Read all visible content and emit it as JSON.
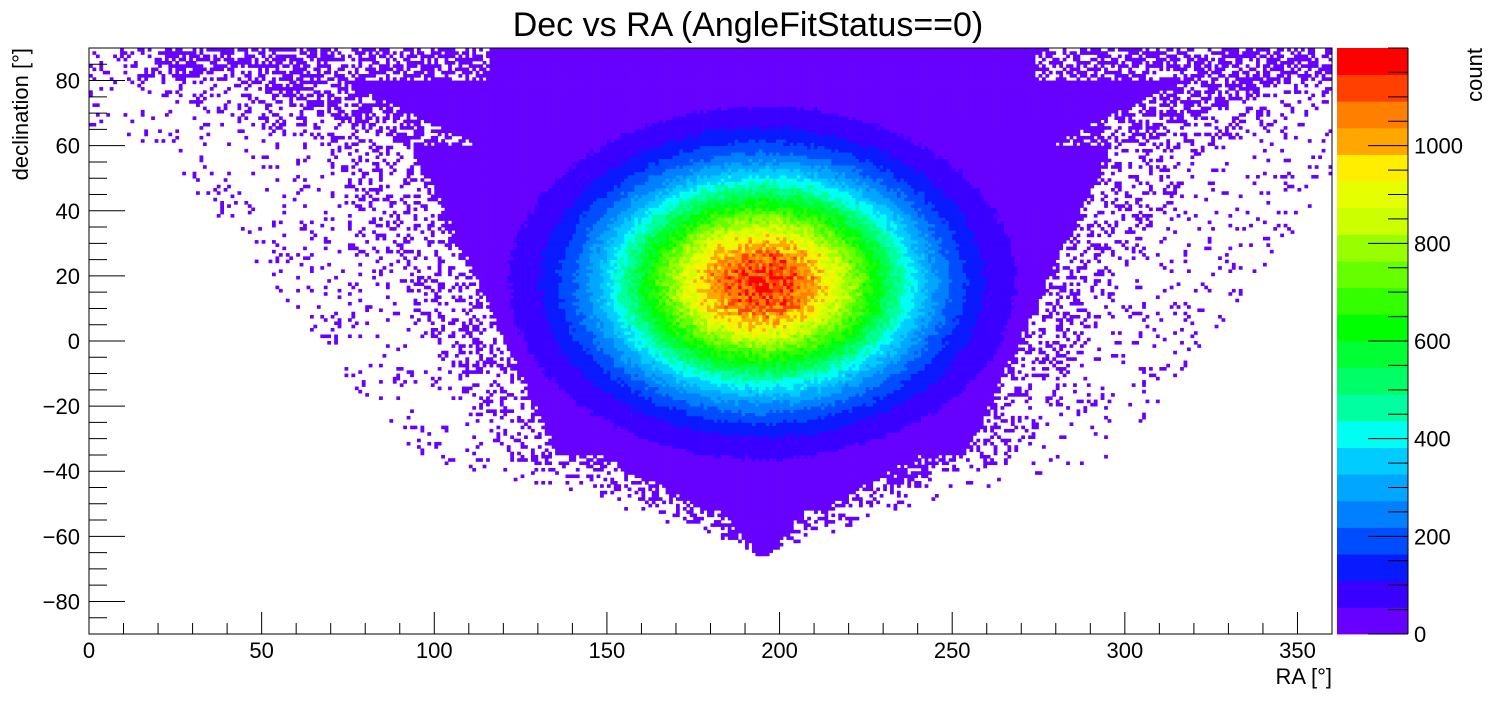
{
  "chart_data": {
    "type": "heatmap",
    "title": "Dec vs RA (AngleFitStatus==0)",
    "xlabel": "RA [°]",
    "ylabel": "declination [°]",
    "zlabel": "count",
    "xlim": [
      0,
      360
    ],
    "ylim": [
      -90,
      90
    ],
    "zlim": [
      0,
      1200
    ],
    "x_ticks": [
      0,
      50,
      100,
      150,
      200,
      250,
      300,
      350
    ],
    "y_ticks": [
      -80,
      -60,
      -40,
      -20,
      0,
      20,
      40,
      60,
      80
    ],
    "z_ticks": [
      0,
      200,
      400,
      600,
      800,
      1000
    ],
    "x_tick_labels": [
      "0",
      "50",
      "100",
      "150",
      "200",
      "250",
      "300",
      "350"
    ],
    "y_tick_labels": [
      "−80",
      "−60",
      "−40",
      "−20",
      "0",
      "20",
      "40",
      "60",
      "80"
    ],
    "z_tick_labels": [
      "0",
      "200",
      "400",
      "600",
      "800",
      "1000"
    ],
    "peak": {
      "ra": 195,
      "dec": 18,
      "count": 1150
    },
    "palette": [
      "#6600ff",
      "#3a00ff",
      "#0a1aff",
      "#004cff",
      "#0080ff",
      "#00a6ff",
      "#00ccff",
      "#00fff2",
      "#00ffa0",
      "#00ff66",
      "#00ff33",
      "#00ff00",
      "#33ff00",
      "#66ff00",
      "#99ff00",
      "#ccff00",
      "#e6ff00",
      "#ffee00",
      "#ffa600",
      "#ff8000",
      "#ff4000",
      "#ff0000"
    ],
    "grid": false,
    "legend": "colorbar-right"
  }
}
